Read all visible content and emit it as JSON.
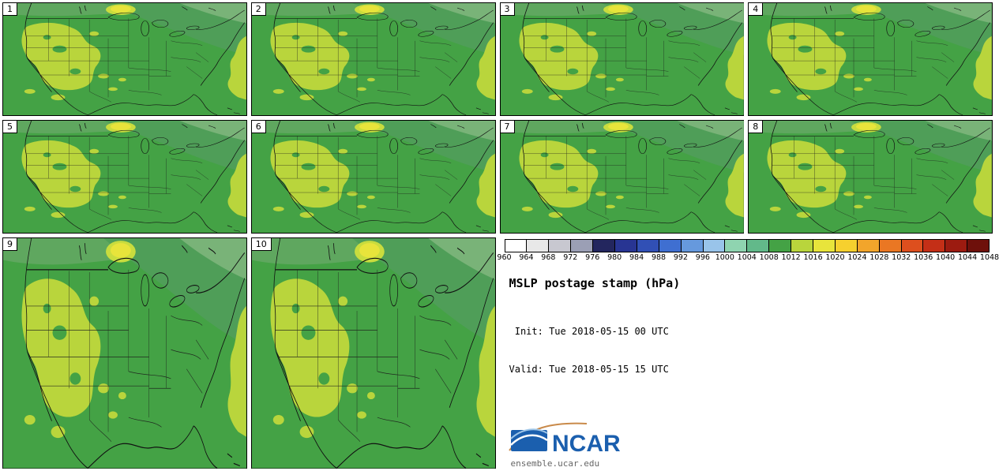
{
  "title": "MSLP postage stamp (hPa)",
  "init_label": " Init: Tue 2018-05-15 00 UTC",
  "valid_label": "Valid: Tue 2018-05-15 15 UTC",
  "footer": "ensemble.ucar.edu",
  "logo": {
    "text": "NCAR"
  },
  "panels": [
    {
      "label": "1"
    },
    {
      "label": "2"
    },
    {
      "label": "3"
    },
    {
      "label": "4"
    },
    {
      "label": "5"
    },
    {
      "label": "6"
    },
    {
      "label": "7"
    },
    {
      "label": "8"
    },
    {
      "label": "9"
    },
    {
      "label": "10"
    }
  ],
  "colorbar": {
    "ticks": [
      "960",
      "964",
      "968",
      "972",
      "976",
      "980",
      "984",
      "988",
      "992",
      "996",
      "1000",
      "1004",
      "1008",
      "1012",
      "1016",
      "1020",
      "1024",
      "1028",
      "1032",
      "1036",
      "1040",
      "1044",
      "1048"
    ],
    "colors": [
      "#ffffff",
      "#e8e8e8",
      "#c8c8d0",
      "#9b9fb5",
      "#23265e",
      "#283593",
      "#3150b5",
      "#3f6fd1",
      "#6699dd",
      "#99c4ea",
      "#8fd4b0",
      "#62b98a",
      "#44a245",
      "#b9d53c",
      "#e8e43b",
      "#f6d02e",
      "#f2a52b",
      "#ea7723",
      "#dd4f1e",
      "#c42f17",
      "#9c1b10",
      "#6e100b"
    ]
  },
  "map_colors": {
    "base_green": "#44a245",
    "canada_band": "#5fa75f",
    "upper_right_swath": "#4f9e58",
    "sage_corner": "#79b378",
    "yellow_green": "#b9d53c",
    "yellow_spot": "#e8e43b",
    "spot_ring": "#c9dc3e"
  },
  "chart_data": {
    "type": "heatmap",
    "subtype": "ensemble postage stamp contour maps (filled MSLP contours over CONUS)",
    "title": "MSLP postage stamp (hPa)",
    "units": "hPa",
    "ensemble_members": [
      "1",
      "2",
      "3",
      "4",
      "5",
      "6",
      "7",
      "8",
      "9",
      "10"
    ],
    "init": "Tue 2018-05-15 00 UTC",
    "valid": "Tue 2018-05-15 15 UTC",
    "region": "Continental United States with southern Canada and northern Mexico",
    "colorbar": {
      "tick_values": [
        960,
        964,
        968,
        972,
        976,
        980,
        984,
        988,
        992,
        996,
        1000,
        1004,
        1008,
        1012,
        1016,
        1020,
        1024,
        1028,
        1032,
        1036,
        1040,
        1044,
        1048
      ],
      "interval_hPa": 4,
      "colors": [
        "#ffffff",
        "#e8e8e8",
        "#c8c8d0",
        "#9b9fb5",
        "#23265e",
        "#283593",
        "#3150b5",
        "#3f6fd1",
        "#6699dd",
        "#99c4ea",
        "#8fd4b0",
        "#62b98a",
        "#44a245",
        "#b9d53c",
        "#e8e43b",
        "#f6d02e",
        "#f2a52b",
        "#ea7723",
        "#dd4f1e",
        "#c42f17",
        "#9c1b10",
        "#6e100b"
      ],
      "position": "top of legend block, horizontal, labels below"
    },
    "visible_field_reading": {
      "dominant_green_fill_hPa": "1008-1012",
      "yellow_green_regions_hPa": "1012-1016 (west-central US and Atlantic east edge)",
      "yellow_low_center_hPa": "1016-1020 spot near Lake Superior",
      "muted_teal_green_north_hPa": "1004-1008 across southern Canada / Northeast"
    },
    "layout": "10 map panels: rows 1-2 have members 1-8, row 3 has members 9-10; legend, title, init/valid times, NCAR logo and URL occupy lower right"
  }
}
